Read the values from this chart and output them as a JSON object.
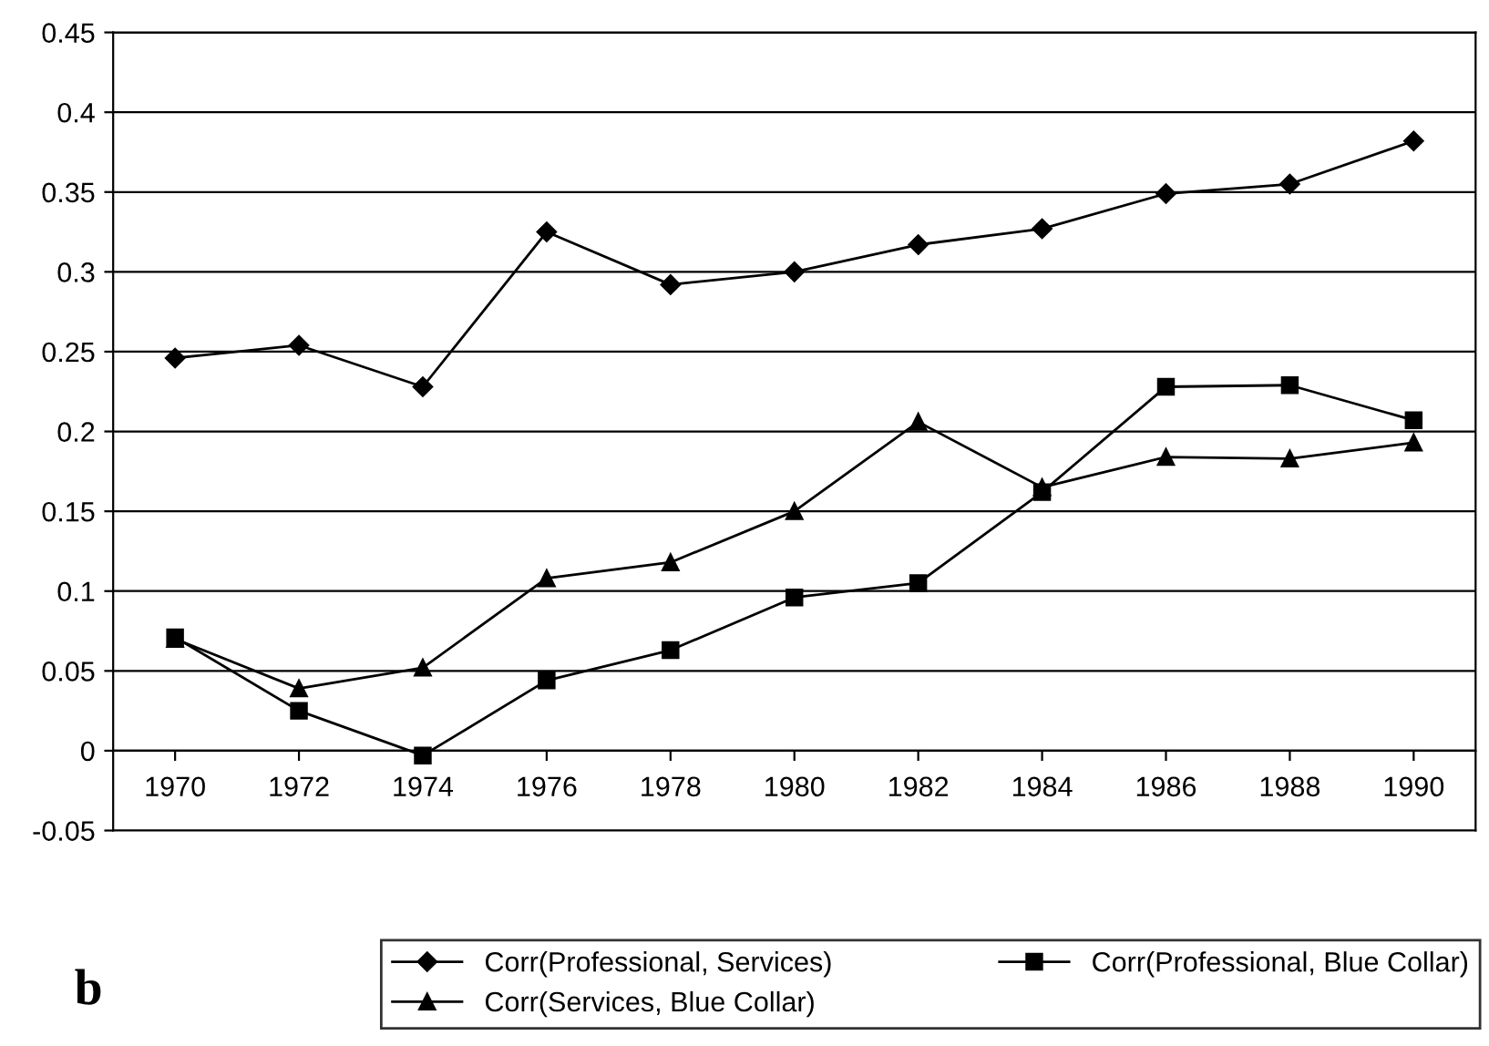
{
  "chart_data": {
    "type": "line",
    "categories": [
      "1970",
      "1972",
      "1974",
      "1976",
      "1978",
      "1980",
      "1982",
      "1984",
      "1986",
      "1988",
      "1990"
    ],
    "series": [
      {
        "name": "Corr(Professional, Services)",
        "color": "#000000",
        "marker": "diamond",
        "values": [
          0.246,
          0.254,
          0.228,
          0.325,
          0.292,
          0.3,
          0.317,
          0.327,
          0.349,
          0.355,
          0.382
        ]
      },
      {
        "name": "Corr(Professional, Blue Collar)",
        "color": "#000000",
        "marker": "square",
        "values": [
          0.071,
          0.025,
          -0.003,
          0.044,
          0.063,
          0.096,
          0.105,
          0.162,
          0.228,
          0.229,
          0.207
        ]
      },
      {
        "name": "Corr(Services, Blue Collar)",
        "color": "#000000",
        "marker": "triangle",
        "values": [
          0.07,
          0.039,
          0.052,
          0.108,
          0.118,
          0.15,
          0.206,
          0.165,
          0.184,
          0.183,
          0.193
        ]
      }
    ],
    "ylim": [
      -0.05,
      0.45
    ],
    "yticks": [
      -0.05,
      0,
      0.05,
      0.1,
      0.15,
      0.2,
      0.25,
      0.3,
      0.35,
      0.4,
      0.45
    ],
    "grid": "y",
    "legend": "bottom",
    "line_style": "solid",
    "annotations": [
      "b"
    ]
  }
}
